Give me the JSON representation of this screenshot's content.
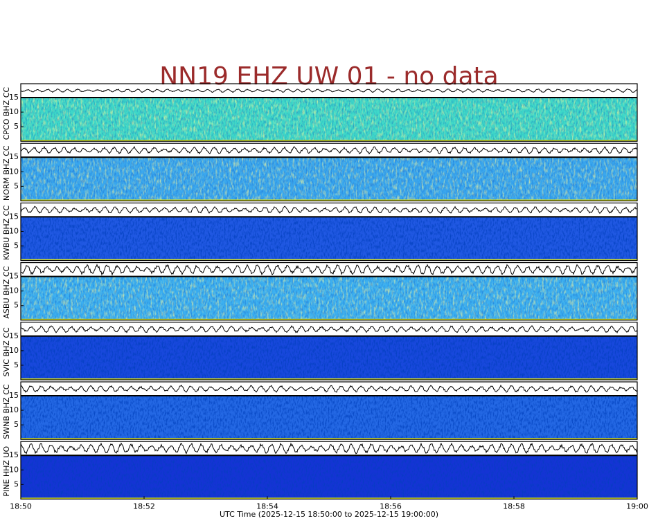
{
  "chart_data": {
    "type": "spectrogram",
    "title": "NN19 EHZ UW 01 - no data",
    "xlabel": "UTC Time (2025-12-15 18:50:00 to 2025-12-15 19:00:00)",
    "xticks": [
      "18:50",
      "18:52",
      "18:54",
      "18:56",
      "18:58",
      "19:00"
    ],
    "ylim": [
      0,
      15
    ],
    "yticks": [
      5,
      10,
      15
    ],
    "panels": [
      {
        "label": "CPCO BHZ CC",
        "color": "#3ed8c8"
      },
      {
        "label": "NORM BHZ CC",
        "color": "#3aa8ee"
      },
      {
        "label": "KWBU BHZ CC",
        "color": "#2058e2"
      },
      {
        "label": "ASBU BHZ CC",
        "color": "#3cb0f0"
      },
      {
        "label": "SVIC BHZ CC",
        "color": "#1848dc"
      },
      {
        "label": "SWNB BHZ CC",
        "color": "#2468e4"
      },
      {
        "label": "PINE HHZ UO",
        "color": "#1434d4"
      }
    ]
  }
}
